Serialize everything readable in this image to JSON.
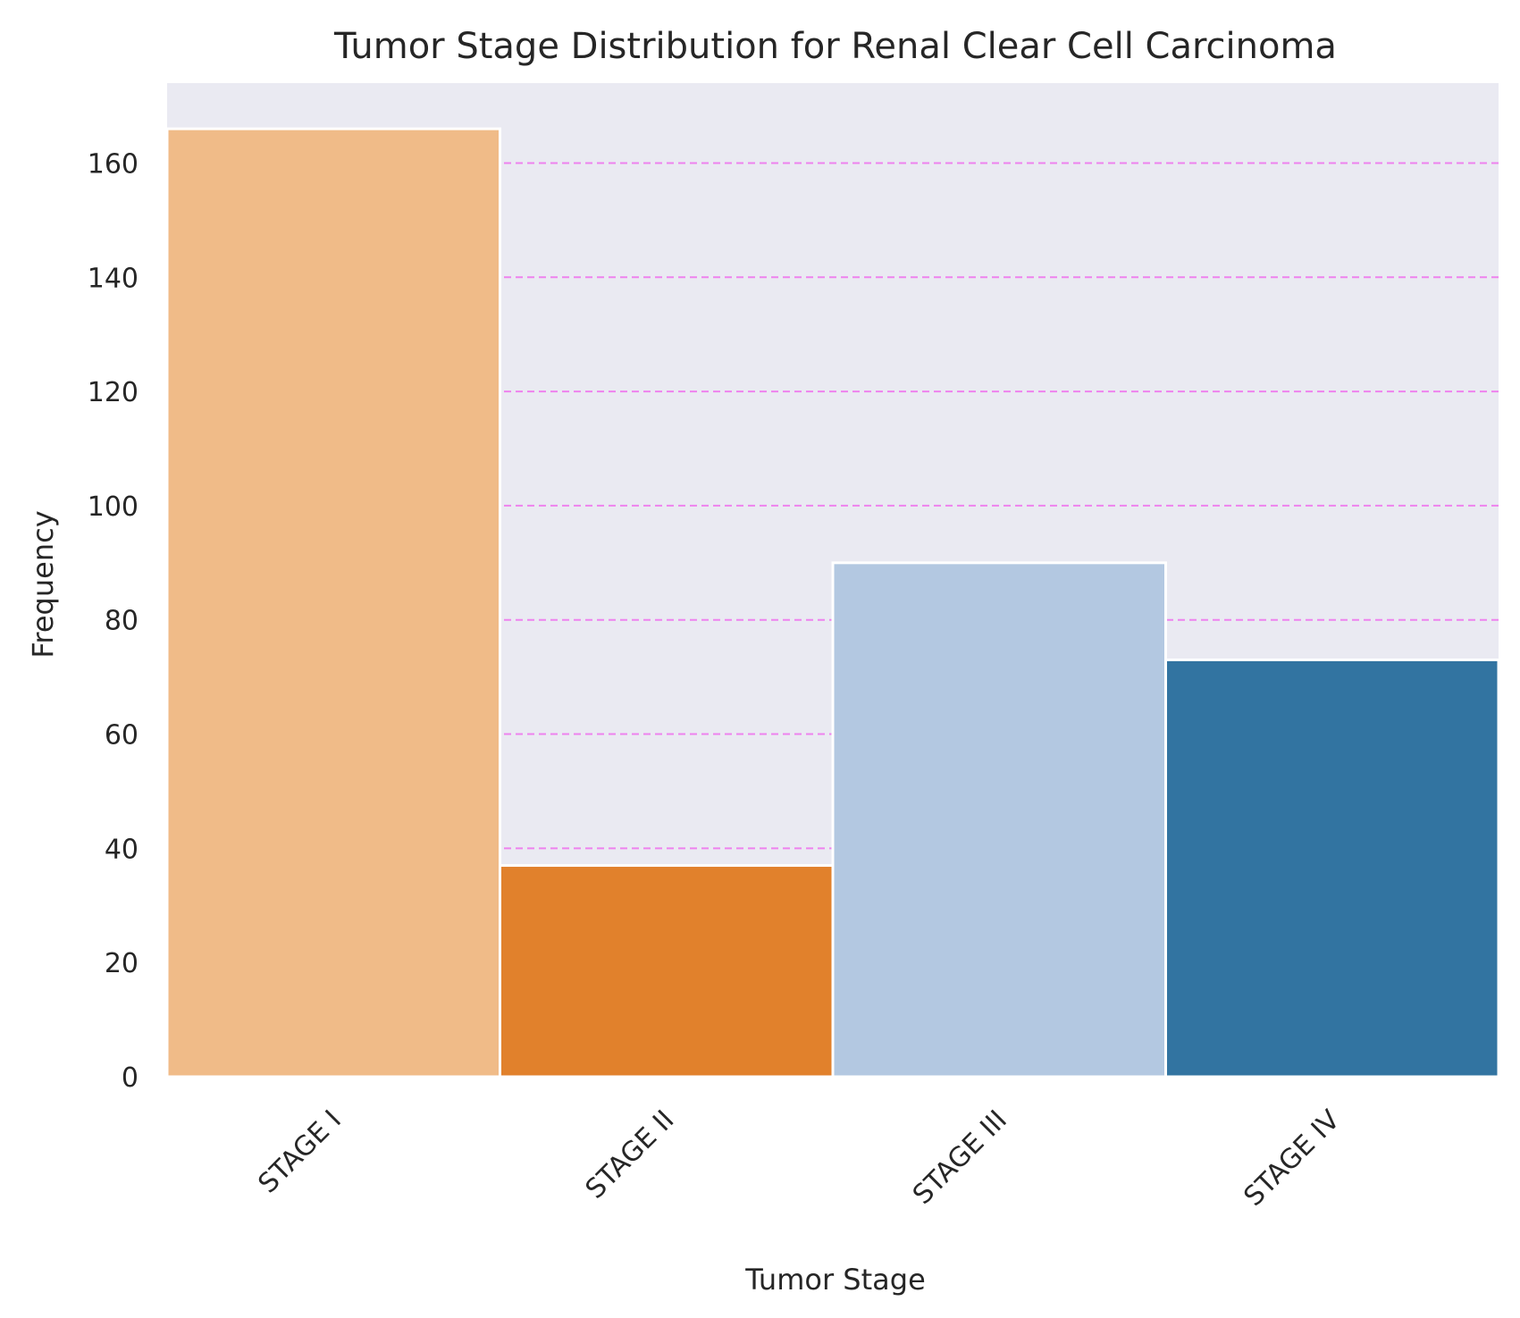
{
  "chart_data": {
    "type": "bar",
    "title": "Tumor Stage Distribution for Renal Clear Cell Carcinoma",
    "xlabel": "Tumor Stage",
    "ylabel": "Frequency",
    "categories": [
      "STAGE I",
      "STAGE II",
      "STAGE III",
      "STAGE IV"
    ],
    "values": [
      166,
      37,
      90,
      73
    ],
    "colors": [
      "#f0bb88",
      "#e1812c",
      "#b3c8e1",
      "#3274a1"
    ],
    "ylim": [
      0,
      174
    ],
    "yticks": [
      0,
      20,
      40,
      60,
      80,
      100,
      120,
      140,
      160
    ],
    "grid": {
      "y": true,
      "style": "dashed",
      "color": "#ee82ee"
    },
    "background": "#eaeaf2",
    "bar_edge_color": "#ffffff",
    "legend": "none"
  }
}
